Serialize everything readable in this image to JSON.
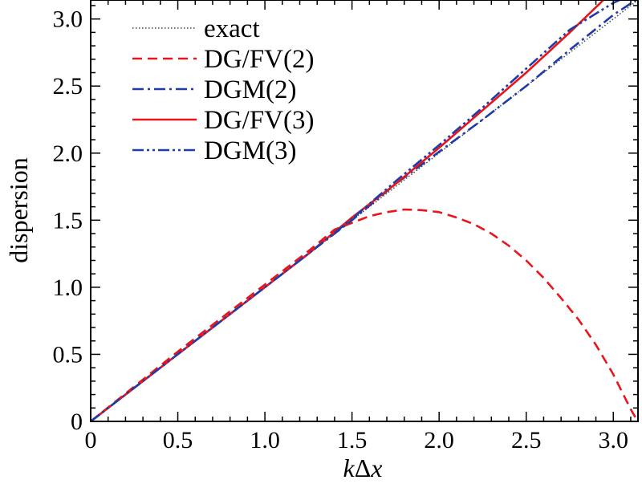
{
  "chart_data": {
    "type": "line",
    "title": "",
    "xlabel_k": "k",
    "xlabel_delta": "Δ",
    "xlabel_x": "x",
    "ylabel": "dispersion",
    "xlim": [
      0,
      3.14159
    ],
    "ylim": [
      0,
      3.14159
    ],
    "grid": false,
    "legend_position": "top-left",
    "x_ticks": [
      0,
      0.5,
      1.0,
      1.5,
      2.0,
      2.5,
      3.0
    ],
    "x_tick_labels": [
      "0",
      "0.5",
      "1.0",
      "1.5",
      "2.0",
      "2.5",
      "3.0"
    ],
    "y_ticks": [
      0,
      0.5,
      1.0,
      1.5,
      2.0,
      2.5,
      3.0
    ],
    "y_tick_labels": [
      "0",
      "0.5",
      "1.0",
      "1.5",
      "2.0",
      "2.5",
      "3.0"
    ],
    "series": [
      {
        "name": "exact",
        "color": "#444444",
        "style": "dotted",
        "x": [
          0,
          3.14159
        ],
        "y": [
          0,
          3.14159
        ]
      },
      {
        "name": "DG/FV(2)",
        "color": "#e8161b",
        "style": "dashed",
        "x": [
          0,
          0.25,
          0.5,
          0.75,
          1.0,
          1.25,
          1.4,
          1.5,
          1.6,
          1.7,
          1.8,
          1.9,
          2.0,
          2.1,
          2.2,
          2.3,
          2.4,
          2.5,
          2.6,
          2.7,
          2.8,
          2.9,
          3.0,
          3.05,
          3.1,
          3.14
        ],
        "y": [
          0,
          0.26,
          0.52,
          0.77,
          1.02,
          1.27,
          1.43,
          1.48,
          1.53,
          1.56,
          1.58,
          1.575,
          1.56,
          1.52,
          1.47,
          1.4,
          1.31,
          1.2,
          1.07,
          0.92,
          0.76,
          0.57,
          0.35,
          0.22,
          0.09,
          0.0
        ]
      },
      {
        "name": "DGM(2)",
        "color": "#1f3ca8",
        "style": "dashdot",
        "x": [
          0,
          0.25,
          0.5,
          0.75,
          1.0,
          1.25,
          1.5,
          1.75,
          2.0,
          2.25,
          2.5,
          2.75,
          3.0,
          3.14
        ],
        "y": [
          0,
          0.25,
          0.5,
          0.75,
          1.0,
          1.25,
          1.5,
          1.77,
          2.01,
          2.25,
          2.5,
          2.77,
          3.03,
          3.15
        ]
      },
      {
        "name": "DG/FV(3)",
        "color": "#e8161b",
        "style": "solid",
        "x": [
          0,
          0.25,
          0.5,
          0.75,
          1.0,
          1.25,
          1.5,
          1.75,
          2.0,
          2.25,
          2.5,
          2.75,
          2.95
        ],
        "y": [
          0,
          0.25,
          0.5,
          0.75,
          1.0,
          1.25,
          1.52,
          1.77,
          2.04,
          2.32,
          2.6,
          2.9,
          3.15
        ]
      },
      {
        "name": "DGM(3)",
        "color": "#1f3ca8",
        "style": "dashdotdot",
        "x": [
          0,
          0.25,
          0.5,
          0.75,
          1.0,
          1.25,
          1.5,
          1.75,
          2.0,
          2.25,
          2.5,
          2.75,
          3.0,
          3.05
        ],
        "y": [
          0,
          0.25,
          0.5,
          0.75,
          1.0,
          1.25,
          1.51,
          1.79,
          2.06,
          2.34,
          2.63,
          2.92,
          3.12,
          3.15
        ]
      }
    ]
  }
}
